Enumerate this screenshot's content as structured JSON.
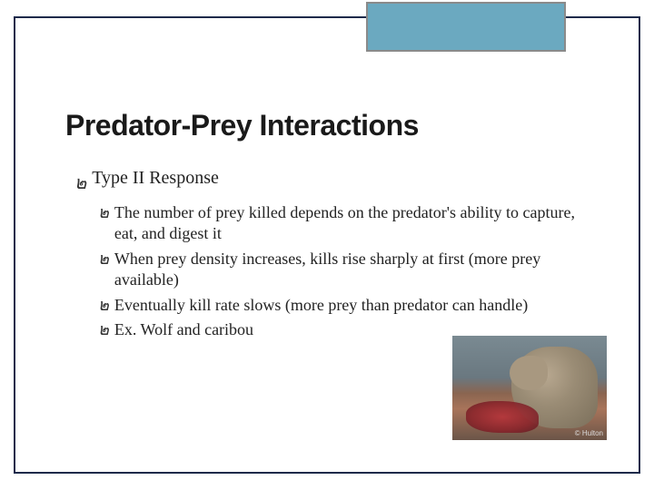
{
  "accent_color": "#6ba9c0",
  "frame_border_color": "#1b2a4a",
  "title": "Predator-Prey Interactions",
  "title_fontsize": 32,
  "title_font": "Arial Black",
  "body_font": "Georgia",
  "bullet_glyph": "๒",
  "level1": {
    "text": "Type II Response",
    "fontsize": 20
  },
  "level2": [
    {
      "text": "The number of prey killed depends on the predator's ability to capture, eat, and digest it"
    },
    {
      "text": "When prey density increases, kills rise sharply at first (more prey available)"
    },
    {
      "text": "Eventually kill rate slows (more prey than predator can handle)"
    },
    {
      "text": "Ex. Wolf and caribou"
    }
  ],
  "level2_fontsize": 18,
  "image": {
    "description": "wolf-eating-caribou-photo",
    "credit": "© Hulton",
    "width": 170,
    "height": 115
  }
}
